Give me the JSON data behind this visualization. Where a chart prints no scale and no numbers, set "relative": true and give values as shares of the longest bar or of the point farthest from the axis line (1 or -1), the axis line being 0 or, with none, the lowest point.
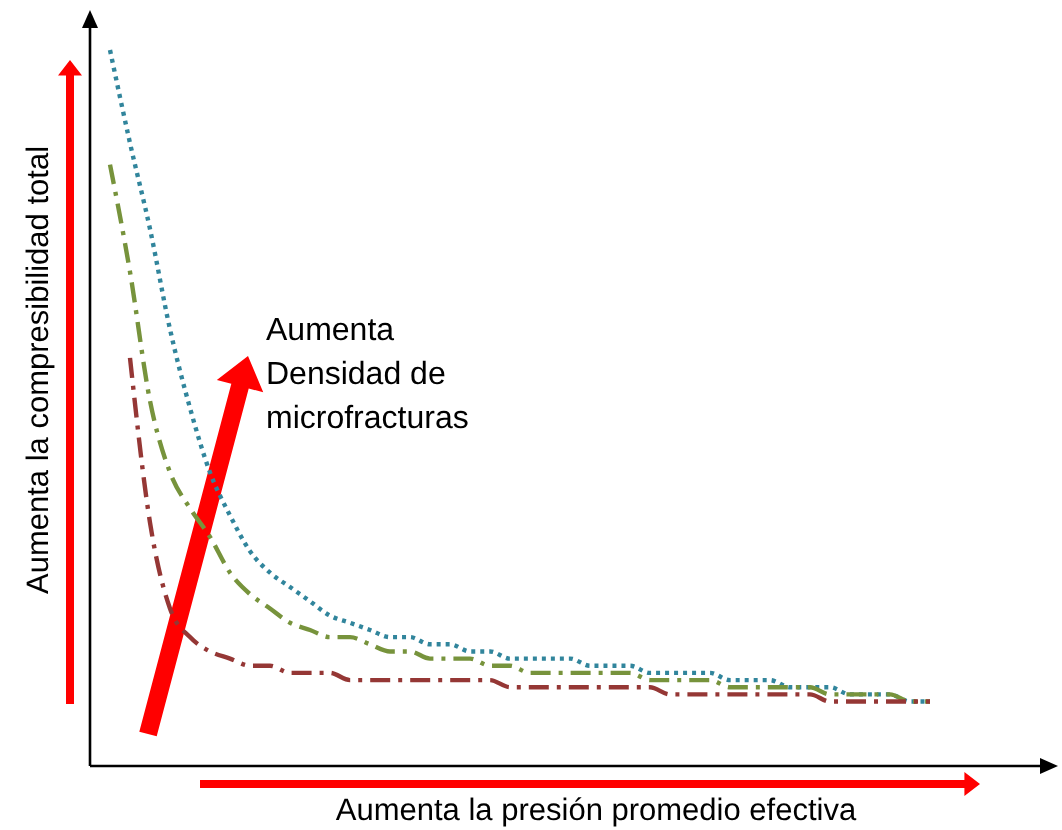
{
  "chart_data": {
    "type": "line",
    "relative": true,
    "xlabel": "Aumenta la presión promedio efectiva",
    "ylabel": "Aumenta la compresibilidad total",
    "annotations": [
      "Aumenta Densidad de microfracturas"
    ],
    "categories": [
      null,
      null,
      null,
      null,
      null,
      null,
      null,
      null,
      null,
      null,
      null,
      null,
      null,
      null,
      null,
      null,
      null,
      null,
      null,
      null,
      null,
      null,
      null,
      null,
      null,
      null,
      null,
      null,
      null,
      null,
      null,
      null,
      null,
      null,
      null,
      null,
      null,
      null,
      null,
      null,
      null,
      null
    ],
    "series": [
      {
        "color": "#31859c",
        "line_style": "dotted",
        "values": [
          1,
          0.87,
          0.75,
          0.61,
          0.5,
          0.41,
          0.35,
          0.3,
          0.27,
          0.25,
          0.23,
          0.21,
          0.2,
          0.19,
          0.18,
          0.18,
          0.17,
          0.17,
          0.16,
          0.16,
          0.15,
          0.15,
          0.15,
          0.15,
          0.14,
          0.14,
          0.14,
          0.13,
          0.13,
          0.13,
          0.13,
          0.12,
          0.12,
          0.12,
          0.11,
          0.11,
          0.11,
          0.1,
          0.1,
          0.1,
          0.09,
          0.09
        ]
      },
      {
        "color": "#77933c",
        "line_style": "dashed",
        "values": [
          0.84,
          0.69,
          0.51,
          0.41,
          0.36,
          0.32,
          0.27,
          0.24,
          0.22,
          0.2,
          0.19,
          0.18,
          0.18,
          0.17,
          0.16,
          0.16,
          0.15,
          0.15,
          0.15,
          0.14,
          0.14,
          0.13,
          0.13,
          0.13,
          0.13,
          0.13,
          0.13,
          0.12,
          0.12,
          0.12,
          0.12,
          0.11,
          0.11,
          0.11,
          0.11,
          0.11,
          0.1,
          0.1,
          0.1,
          0.1,
          0.09,
          0.09
        ]
      },
      {
        "color": "#953735",
        "line_style": "dashed",
        "values": [
          null,
          0.57,
          0.34,
          0.22,
          0.18,
          0.16,
          0.15,
          0.14,
          0.14,
          0.13,
          0.13,
          0.13,
          0.12,
          0.12,
          0.12,
          0.12,
          0.12,
          0.12,
          0.12,
          0.12,
          0.11,
          0.11,
          0.11,
          0.11,
          0.11,
          0.11,
          0.11,
          0.11,
          0.1,
          0.1,
          0.1,
          0.1,
          0.1,
          0.1,
          0.1,
          0.1,
          0.09,
          0.09,
          0.09,
          0.09,
          0.09,
          0.09
        ]
      }
    ]
  }
}
